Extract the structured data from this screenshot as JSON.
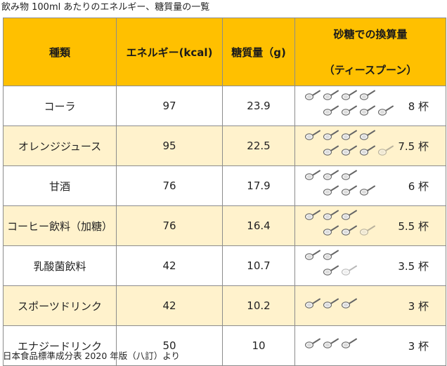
{
  "caption": "飲み物 100ml あたりのエネルギー、糖質量の一覧",
  "source": "日本食品標準成分表 2020 年版（八訂）より",
  "headers": {
    "type": "種類",
    "energy": "エネルギー(kcal)",
    "sugar": "糖質量（g)",
    "spoon_line1": "砂糖での換算量",
    "spoon_line2": "（ティースプーン）"
  },
  "colors": {
    "header_bg": "#ffc000",
    "alt_row_bg": "#fff2cc",
    "border": "#8c8c8c"
  },
  "spoon_icon": "teaspoon-icon",
  "rows": [
    {
      "name": "コーラ",
      "energy": "97",
      "sugar": "23.9",
      "cups": "8 杯",
      "spoons": 8
    },
    {
      "name": "オレンジジュース",
      "energy": "95",
      "sugar": "22.5",
      "cups": "7.5 杯",
      "spoons": 7.5
    },
    {
      "name": "甘酒",
      "energy": "76",
      "sugar": "17.9",
      "cups": "6 杯",
      "spoons": 6
    },
    {
      "name": "コーヒー飲料（加糖）",
      "energy": "76",
      "sugar": "16.4",
      "cups": "5.5 杯",
      "spoons": 5.5
    },
    {
      "name": "乳酸菌飲料",
      "energy": "42",
      "sugar": "10.7",
      "cups": "3.5 杯",
      "spoons": 3.5
    },
    {
      "name": "スポーツドリンク",
      "energy": "42",
      "sugar": "10.2",
      "cups": "3 杯",
      "spoons": 3
    },
    {
      "name": "エナジードリンク",
      "energy": "50",
      "sugar": "10",
      "cups": "3 杯",
      "spoons": 3
    }
  ]
}
